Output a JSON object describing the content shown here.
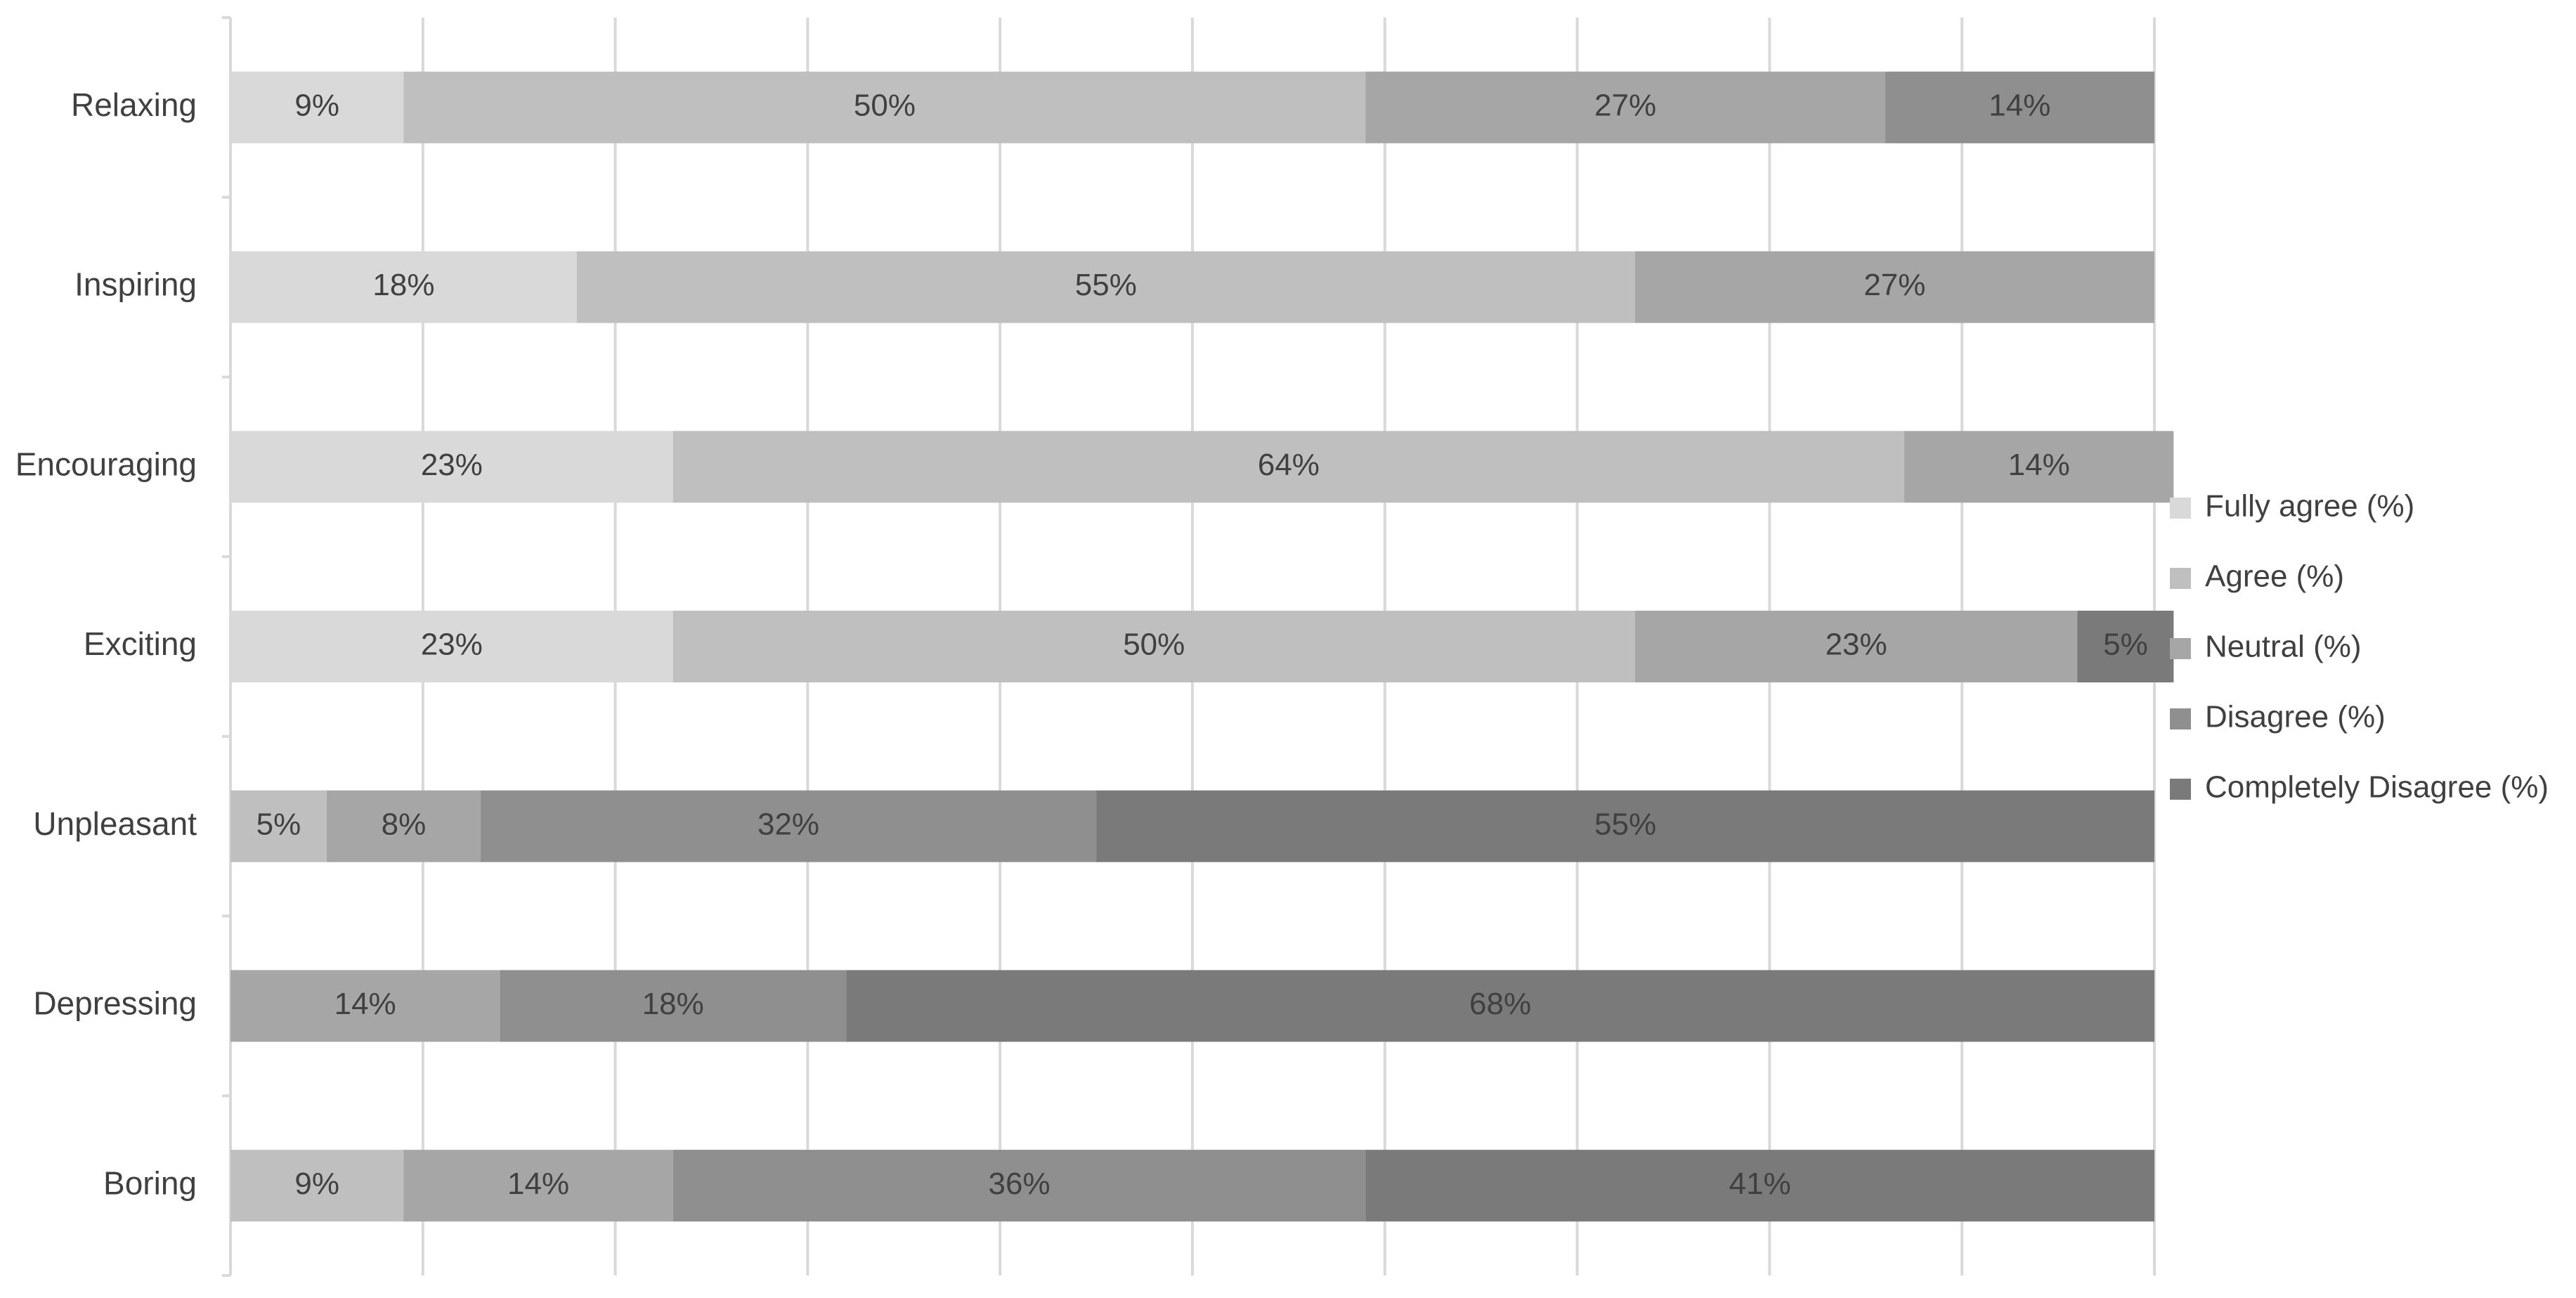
{
  "chart_data": {
    "type": "bar",
    "orientation": "horizontal",
    "stacked": true,
    "categories": [
      "Relaxing",
      "Inspiring",
      "Encouraging",
      "Exciting",
      "Unpleasant",
      "Depressing",
      "Boring"
    ],
    "series": [
      {
        "name": "Fully agree (%)",
        "values": [
          9,
          18,
          23,
          23,
          0,
          0,
          0
        ],
        "color": "#d9d9d9"
      },
      {
        "name": "Agree (%)",
        "values": [
          50,
          55,
          64,
          50,
          5,
          0,
          9
        ],
        "color": "#bfbfbf"
      },
      {
        "name": "Neutral (%)",
        "values": [
          27,
          27,
          14,
          23,
          8,
          14,
          14
        ],
        "color": "#a6a6a6"
      },
      {
        "name": "Disagree (%)",
        "values": [
          14,
          0,
          0,
          0,
          32,
          18,
          36
        ],
        "color": "#8f8f8f"
      },
      {
        "name": "Completely Disagree (%)",
        "values": [
          0,
          0,
          0,
          5,
          55,
          68,
          41
        ],
        "color": "#7a7a7a"
      }
    ],
    "value_labels": [
      "9%",
      "50%",
      "27%",
      "14%",
      "18%",
      "55%",
      "27%",
      "23%",
      "64%",
      "14%",
      "23%",
      "50%",
      "23%",
      "5%",
      "5%",
      "8%",
      "32%",
      "55%",
      "14%",
      "18%",
      "68%",
      "9%",
      "14%",
      "36%",
      "41%"
    ],
    "xlim": [
      0,
      100
    ],
    "grid": true,
    "legend": "right",
    "title": "",
    "xlabel": "",
    "ylabel": ""
  }
}
